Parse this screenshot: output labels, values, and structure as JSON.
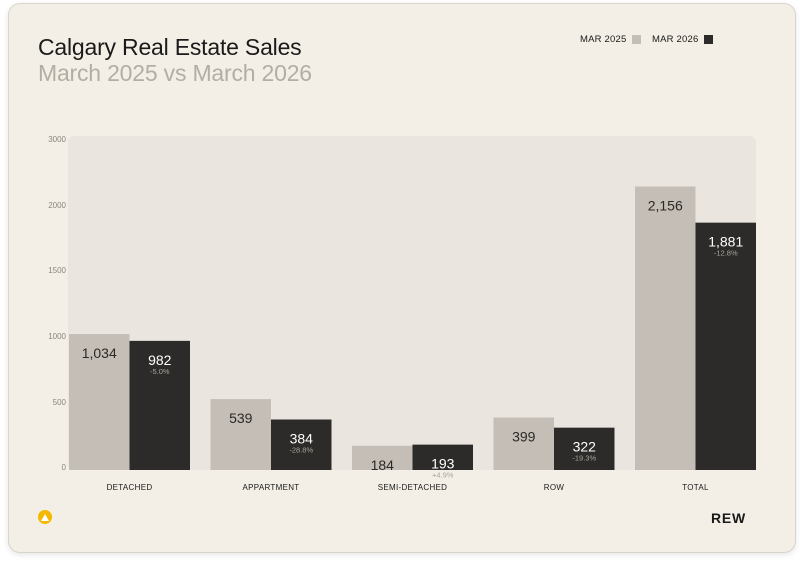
{
  "header": {
    "title": "Calgary Real Estate Sales",
    "subtitle": "March 2025 vs March 2026"
  },
  "legend": {
    "items": [
      {
        "label": "MAR 2025",
        "color": "#c4beb6"
      },
      {
        "label": "MAR 2026",
        "color": "#2d2b29"
      }
    ]
  },
  "footer": {
    "brand": "REW",
    "brand_icon": "rew-logo-icon"
  },
  "colors": {
    "card_background": "#f3efe6",
    "plot_background": "#eae6df",
    "accent": "#f5b800"
  },
  "chart_data": {
    "type": "bar",
    "title": "Calgary Real Estate Sales",
    "subtitle": "March 2025 vs March 2026",
    "categories": [
      "DETACHED",
      "APPARTMENT",
      "SEMI-DETACHED",
      "ROW",
      "TOTAL"
    ],
    "series": [
      {
        "name": "MAR 2025",
        "values": [
          1034,
          539,
          184,
          399,
          2156
        ],
        "labels": [
          "1,034",
          "539",
          "184",
          "399",
          "2,156"
        ],
        "color": "#c4beb6"
      },
      {
        "name": "MAR 2026",
        "values": [
          982,
          384,
          193,
          322,
          1881
        ],
        "labels": [
          "982",
          "384",
          "193",
          "322",
          "1,881"
        ],
        "changes": [
          "-5.0%",
          "-28.8%",
          "+4.9%",
          "-19.3%",
          "-12.8%"
        ],
        "color": "#2d2b29"
      }
    ],
    "yticks": [
      0,
      500,
      1000,
      1500,
      2000,
      3000
    ],
    "ylim": [
      0,
      2500
    ],
    "grid": false,
    "legend_position": "top-right"
  }
}
